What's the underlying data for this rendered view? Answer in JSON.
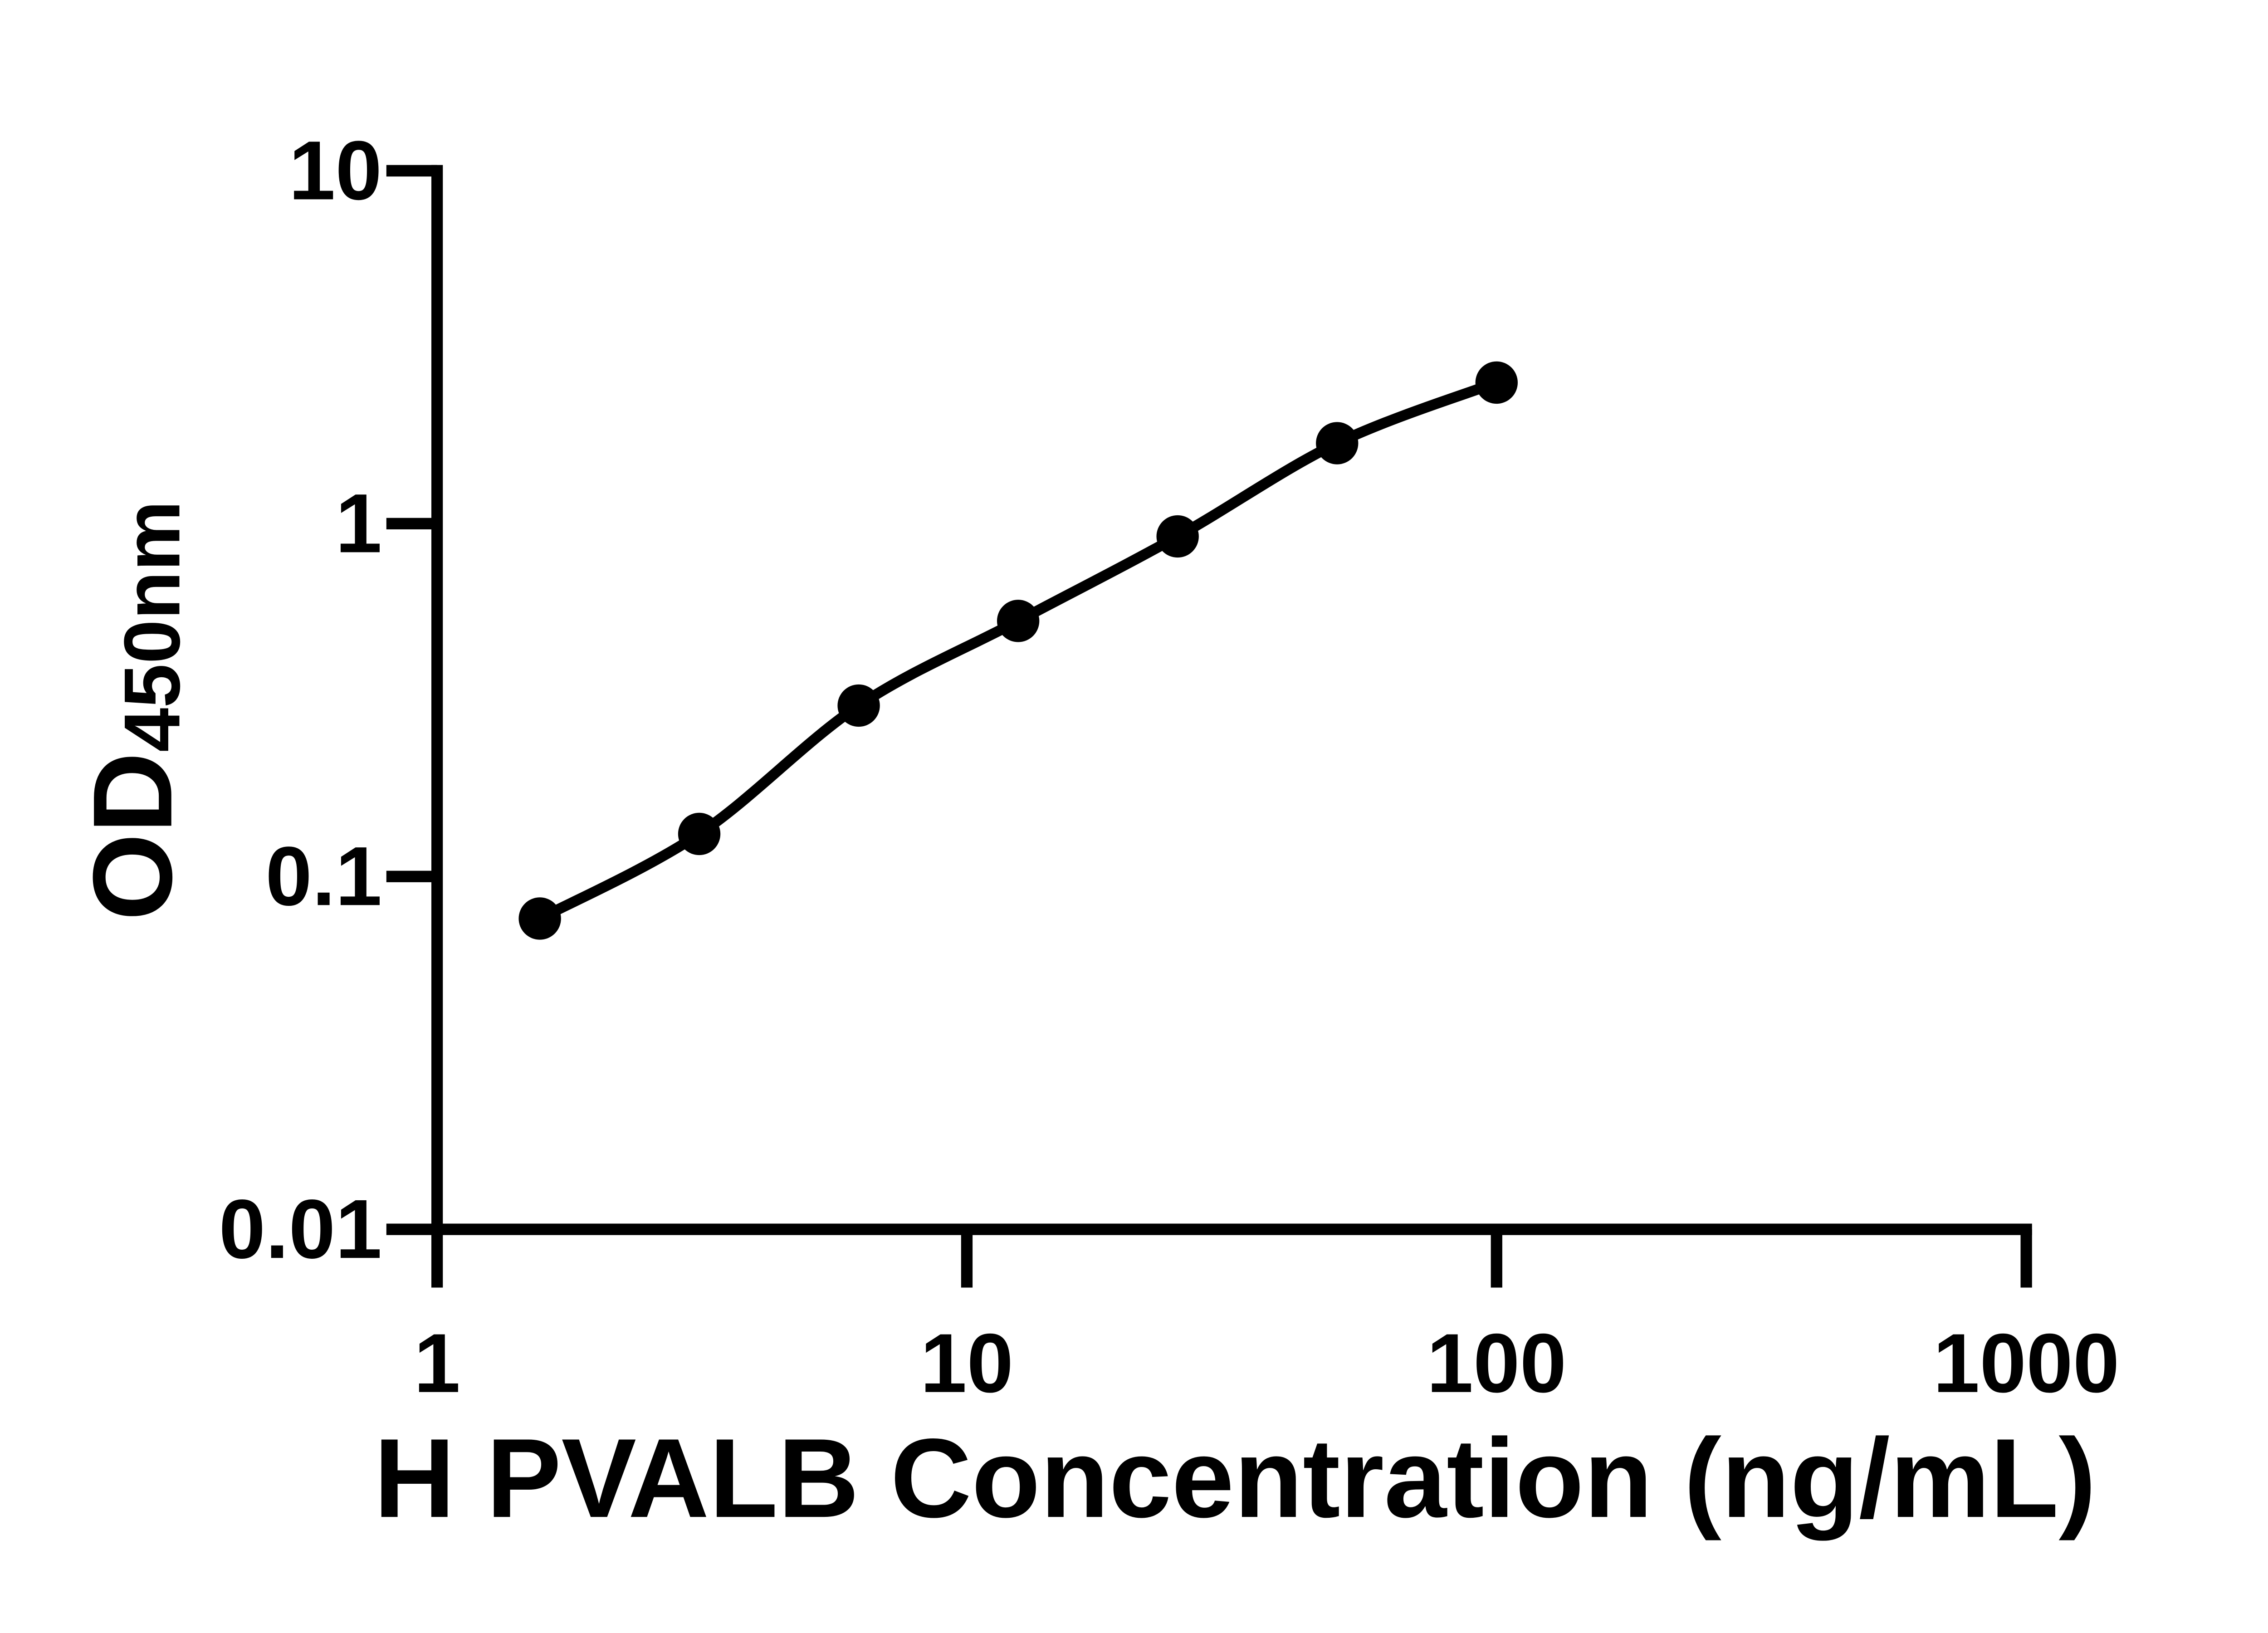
{
  "chart_data": {
    "type": "scatter",
    "title": "",
    "xlabel": "H PVALB Concentration (ng/mL)",
    "ylabel_main": "OD",
    "ylabel_sub": "450nm",
    "x_scale": "log",
    "y_scale": "log",
    "xlim": [
      1,
      1000
    ],
    "ylim": [
      0.01,
      10
    ],
    "x_ticks": [
      1,
      10,
      100,
      1000
    ],
    "x_tick_labels": [
      "1",
      "10",
      "100",
      "1000"
    ],
    "y_ticks": [
      10,
      1,
      0.1,
      0.01
    ],
    "y_tick_labels": [
      "10",
      "1",
      "0.1",
      "0.01"
    ],
    "grid": false,
    "legend": false,
    "background": "#ffffff",
    "series": [
      {
        "x": [
          1.563,
          3.125,
          6.25,
          12.5,
          25,
          50,
          100
        ],
        "y": [
          0.076,
          0.132,
          0.305,
          0.53,
          0.92,
          1.69,
          2.51
        ],
        "marker": "circle",
        "line": "smooth",
        "color": "#000000"
      }
    ]
  }
}
